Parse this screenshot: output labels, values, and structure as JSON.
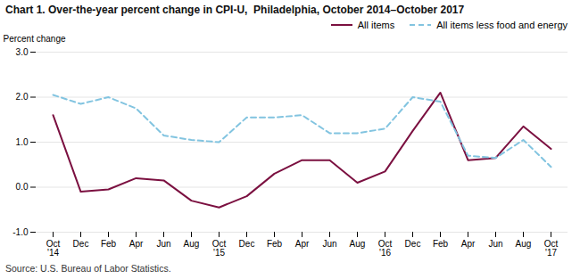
{
  "chart_data": {
    "type": "line",
    "title": "Chart 1. Over-the-year percent change in CPI-U,  Philadelphia, October 2014–October 2017",
    "y_label": "Percent change",
    "source": "Source: U.S. Bureau of Labor Statistics.",
    "categories": [
      "Oct\n'14",
      "Dec",
      "Feb",
      "Apr",
      "Jun",
      "Aug",
      "Oct\n'15",
      "Dec",
      "Feb",
      "Apr",
      "Jun",
      "Aug",
      "Oct\n'16",
      "Dec",
      "Feb",
      "Apr",
      "Jun",
      "Aug",
      "Oct\n'17"
    ],
    "series": [
      {
        "name": "All items",
        "color": "#7B1040",
        "line_style": "solid",
        "values": [
          1.6,
          -0.1,
          -0.05,
          0.2,
          0.15,
          -0.3,
          -0.45,
          -0.2,
          0.3,
          0.6,
          0.6,
          0.1,
          0.35,
          1.25,
          2.1,
          0.6,
          0.65,
          1.35,
          0.85
        ]
      },
      {
        "name": "All items less food and energy",
        "color": "#82C4E0",
        "line_style": "dashed",
        "values": [
          2.05,
          1.85,
          2.0,
          1.75,
          1.15,
          1.05,
          1.0,
          1.55,
          1.55,
          1.6,
          1.2,
          1.2,
          1.3,
          2.0,
          1.9,
          0.7,
          0.65,
          1.05,
          0.45
        ]
      }
    ],
    "ylim": [
      -1.0,
      3.0
    ],
    "yticks": [
      {
        "value": -1.0,
        "label": "-1.0"
      },
      {
        "value": 0.0,
        "label": "0.0"
      },
      {
        "value": 1.0,
        "label": "1.0"
      },
      {
        "value": 2.0,
        "label": "2.0"
      },
      {
        "value": 3.0,
        "label": "3.0"
      }
    ],
    "grid": true,
    "legend": "upper right"
  }
}
